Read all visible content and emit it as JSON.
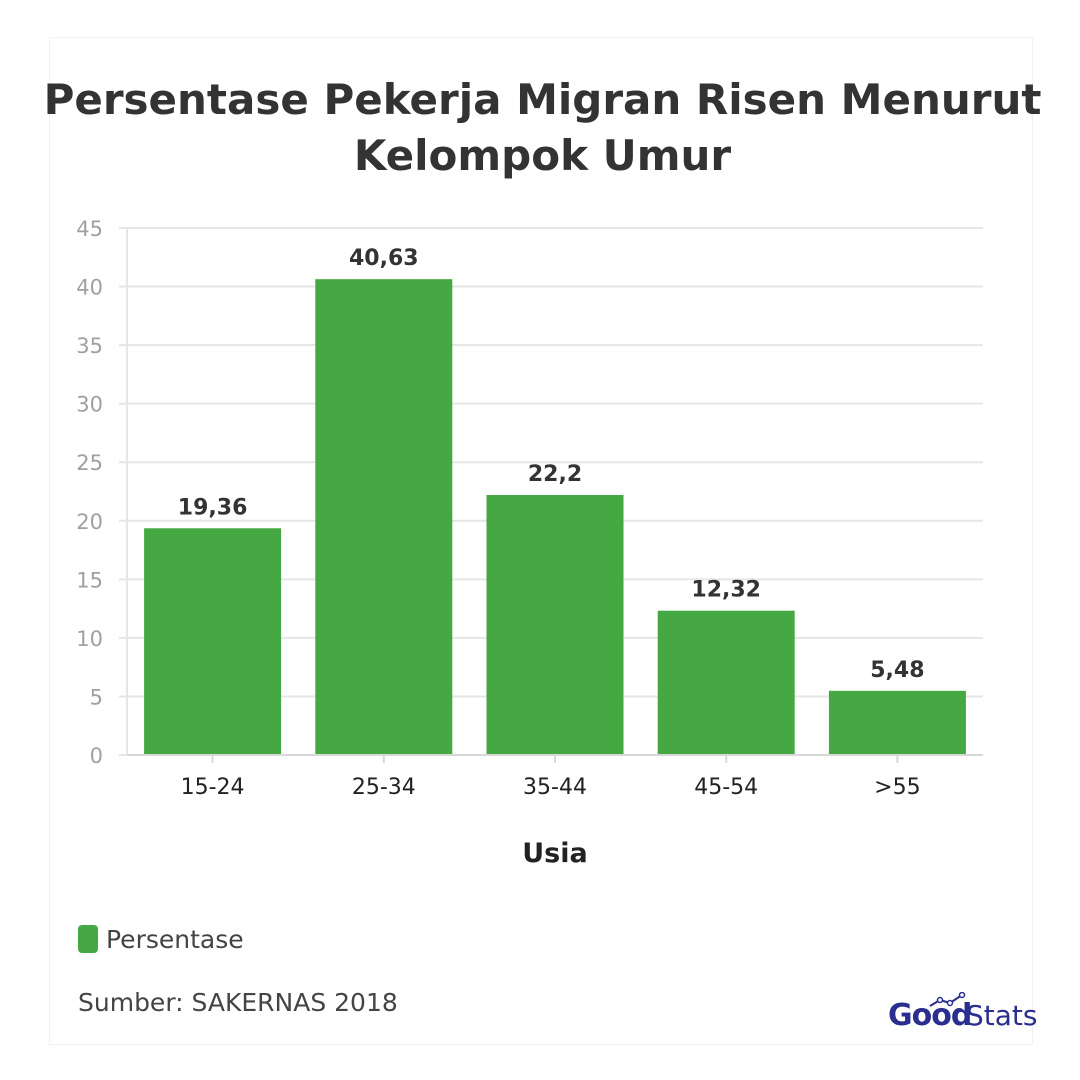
{
  "chart_data": {
    "type": "bar",
    "title": "Persentase Pekerja Migran Risen Menurut Kelompok Umur",
    "title_lines": [
      "Persentase Pekerja Migran Risen Menurut",
      "Kelompok Umur"
    ],
    "categories": [
      "15-24",
      "25-34",
      "35-44",
      "45-54",
      ">55"
    ],
    "series": [
      {
        "name": "Persentase",
        "values": [
          19.36,
          40.63,
          22.2,
          12.32,
          5.48
        ],
        "labels": [
          "19,36",
          "40,63",
          "22,2",
          "12,32",
          "5,48"
        ],
        "color": "#46a843"
      }
    ],
    "xlabel": "Usia",
    "ylabel": "",
    "ylim": [
      0,
      45
    ],
    "yticks": [
      0,
      5,
      10,
      15,
      20,
      25,
      30,
      35,
      40,
      45
    ],
    "grid": true,
    "legend": "bottom-left"
  },
  "legend": {
    "label": "Persentase"
  },
  "source": "Sumber: SAKERNAS 2018",
  "logo": {
    "part1": "Good",
    "part2": "Stats"
  },
  "colors": {
    "bar": "#46a843",
    "title": "#333333",
    "logo": "#2a2e8f"
  }
}
